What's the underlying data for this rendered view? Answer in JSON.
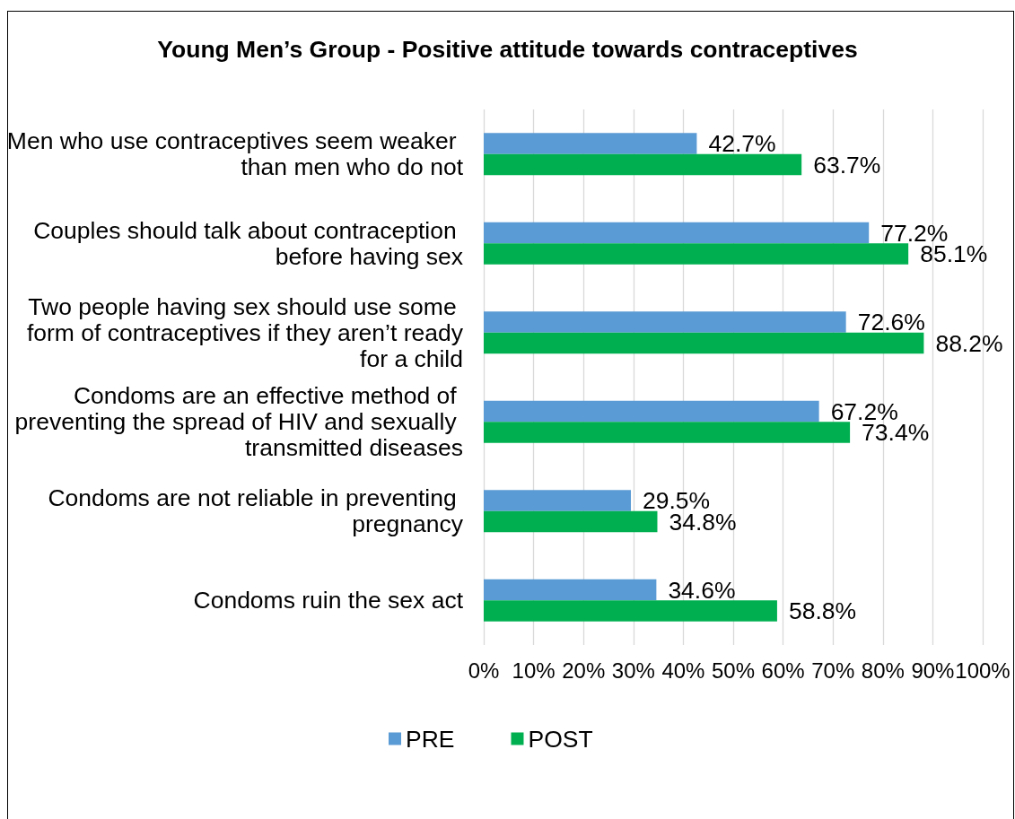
{
  "chart_data": {
    "type": "bar",
    "orientation": "horizontal",
    "title": "Young Men’s Group - Positive attitude towards contraceptives",
    "categories": [
      "Men who use contraceptives seem weaker than men who do not",
      "Couples should talk about contraception before having sex",
      "Two people having sex should use some form of contraceptives if they aren’t ready for a child",
      "Condoms are an effective method of preventing the spread of HIV and sexually transmitted diseases",
      "Condoms are not reliable in preventing pregnancy",
      "Condoms ruin the sex act"
    ],
    "series": [
      {
        "name": "PRE",
        "color": "#5b9bd5",
        "values": [
          42.7,
          77.2,
          72.6,
          67.2,
          29.5,
          34.6
        ],
        "value_labels": [
          "42.7%",
          "77.2%",
          "72.6%",
          "67.2%",
          "29.5%",
          "34.6%"
        ]
      },
      {
        "name": "POST",
        "color": "#00b050",
        "values": [
          63.7,
          85.1,
          88.2,
          73.4,
          34.8,
          58.8
        ],
        "value_labels": [
          "63.7%",
          "85.1%",
          "88.2%",
          "73.4%",
          "34.8%",
          "58.8%"
        ]
      }
    ],
    "xlim": [
      0,
      100
    ],
    "xticks": [
      {
        "value": 0,
        "label": "0%"
      },
      {
        "value": 10,
        "label": "10%"
      },
      {
        "value": 20,
        "label": "20%"
      },
      {
        "value": 30,
        "label": "30%"
      },
      {
        "value": 40,
        "label": "40%"
      },
      {
        "value": 50,
        "label": "50%"
      },
      {
        "value": 60,
        "label": "60%"
      },
      {
        "value": 70,
        "label": "70%"
      },
      {
        "value": 80,
        "label": "80%"
      },
      {
        "value": 90,
        "label": "90%"
      },
      {
        "value": 100,
        "label": "100%"
      }
    ],
    "grid": "x",
    "legend": "bottom"
  }
}
